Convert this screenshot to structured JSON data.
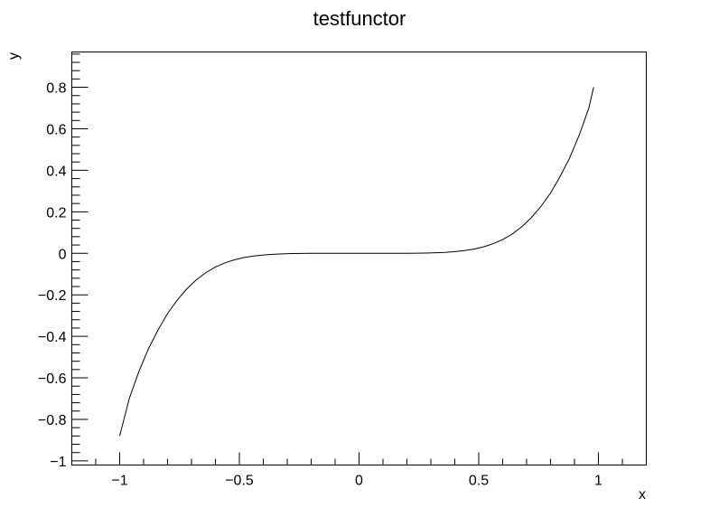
{
  "chart_data": {
    "type": "line",
    "title": "testfunctor",
    "xlabel": "x",
    "ylabel": "y",
    "xlim": [
      -1.2,
      1.2
    ],
    "ylim": [
      -1.02,
      0.97
    ],
    "grid": false,
    "legend": "none",
    "line_color": "#000000",
    "x_ticks": [
      -1,
      -0.5,
      0,
      0.5,
      1
    ],
    "x_tick_labels": [
      "−1",
      "−0.5",
      "0",
      "0.5",
      "1"
    ],
    "y_ticks": [
      -1,
      -0.8,
      -0.6,
      -0.4,
      -0.2,
      0,
      0.2,
      0.4,
      0.6,
      0.8
    ],
    "y_tick_labels": [
      "−1",
      "−0.8",
      "−0.6",
      "−0.4",
      "−0.2",
      "0",
      "0.2",
      "0.4",
      "0.6",
      "0.8"
    ],
    "series": [
      {
        "x": [
          -1.0,
          -0.96,
          -0.92,
          -0.88,
          -0.84,
          -0.8,
          -0.76,
          -0.72,
          -0.68,
          -0.64,
          -0.6,
          -0.56,
          -0.52,
          -0.48,
          -0.44,
          -0.4,
          -0.36,
          -0.32,
          -0.28,
          -0.24,
          -0.2,
          -0.16,
          -0.12,
          -0.08,
          -0.04,
          0.0,
          0.04,
          0.08,
          0.12,
          0.16,
          0.2,
          0.24,
          0.28,
          0.32,
          0.36,
          0.4,
          0.44,
          0.48,
          0.52,
          0.56,
          0.6,
          0.64,
          0.68,
          0.72,
          0.76,
          0.8,
          0.84,
          0.88,
          0.92,
          0.96,
          0.98
        ],
        "y": [
          -0.88,
          -0.7,
          -0.57,
          -0.46,
          -0.37,
          -0.29,
          -0.226,
          -0.172,
          -0.128,
          -0.093,
          -0.066,
          -0.046,
          -0.031,
          -0.02,
          -0.013,
          -0.008,
          -0.0046,
          -0.0025,
          -0.0012,
          -0.0005,
          -0.0002,
          -5e-05,
          -1e-05,
          0.0,
          0.0,
          0.0,
          0.0,
          0.0,
          1e-05,
          5e-05,
          0.0002,
          0.0005,
          0.0012,
          0.0025,
          0.0046,
          0.008,
          0.013,
          0.02,
          0.031,
          0.046,
          0.066,
          0.093,
          0.128,
          0.172,
          0.226,
          0.29,
          0.37,
          0.46,
          0.57,
          0.7,
          0.8
        ]
      }
    ]
  }
}
